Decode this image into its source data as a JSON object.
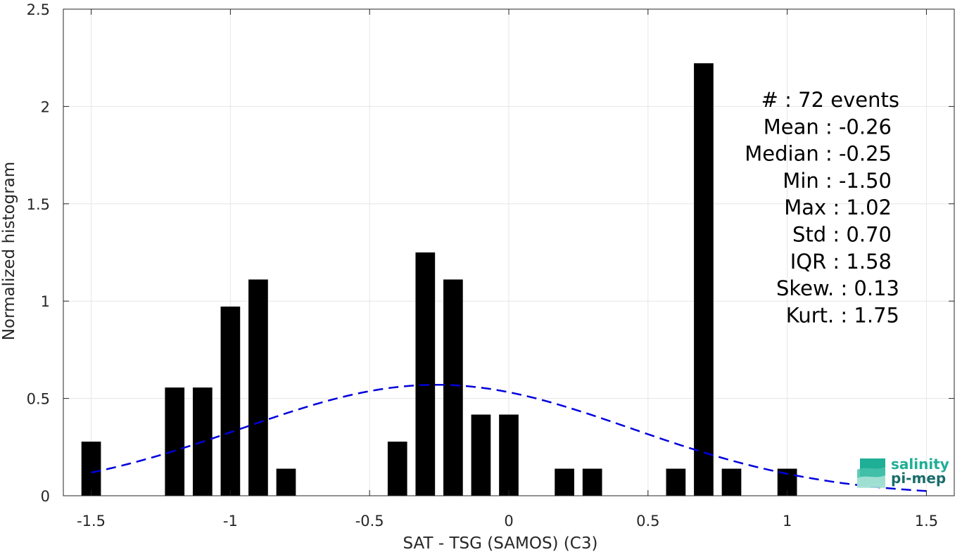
{
  "chart_data": {
    "type": "bar",
    "xlabel": "SAT - TSG (SAMOS) (C3)",
    "ylabel": "Normalized histogram",
    "xlim": [
      -1.6,
      1.6
    ],
    "ylim": [
      0,
      2.5
    ],
    "xticks": [
      -1.5,
      -1,
      -0.5,
      0,
      0.5,
      1,
      1.5
    ],
    "xtick_labels": [
      "-1.5",
      "-1",
      "-0.5",
      "0",
      "0.5",
      "1",
      "1.5"
    ],
    "yticks": [
      0,
      0.5,
      1,
      1.5,
      2,
      2.5
    ],
    "ytick_labels": [
      "0",
      "0.5",
      "1",
      "1.5",
      "2",
      "2.5"
    ],
    "grid": true,
    "bar_width": 0.07,
    "bars": [
      {
        "x": -1.5,
        "y": 0.278
      },
      {
        "x": -1.2,
        "y": 0.556
      },
      {
        "x": -1.1,
        "y": 0.556
      },
      {
        "x": -1.0,
        "y": 0.972
      },
      {
        "x": -0.9,
        "y": 1.111
      },
      {
        "x": -0.8,
        "y": 0.139
      },
      {
        "x": -0.4,
        "y": 0.278
      },
      {
        "x": -0.3,
        "y": 1.25
      },
      {
        "x": -0.2,
        "y": 1.111
      },
      {
        "x": -0.1,
        "y": 0.417
      },
      {
        "x": 0.0,
        "y": 0.417
      },
      {
        "x": 0.2,
        "y": 0.139
      },
      {
        "x": 0.3,
        "y": 0.139
      },
      {
        "x": 0.6,
        "y": 0.139
      },
      {
        "x": 0.7,
        "y": 2.222
      },
      {
        "x": 0.8,
        "y": 0.139
      },
      {
        "x": 1.0,
        "y": 0.139
      }
    ],
    "fit_curve": {
      "type": "normal",
      "mean": -0.26,
      "std": 0.7,
      "x_range": [
        -1.5,
        1.5
      ],
      "color": "#0000dd",
      "style": "dashed"
    },
    "bar_color": "#000000",
    "stats": [
      "#  : 72 events",
      "Mean : -0.26",
      "Median : -0.25",
      "Min : -1.50",
      "Max : 1.02",
      "Std : 0.70",
      "IQR : 1.58",
      "Skew. : 0.13",
      "Kurt. : 1.75"
    ]
  },
  "logo": {
    "line1": "salinity",
    "line2": "pi-mep",
    "color1": "#1fae96",
    "color2": "#1a6d6b"
  }
}
